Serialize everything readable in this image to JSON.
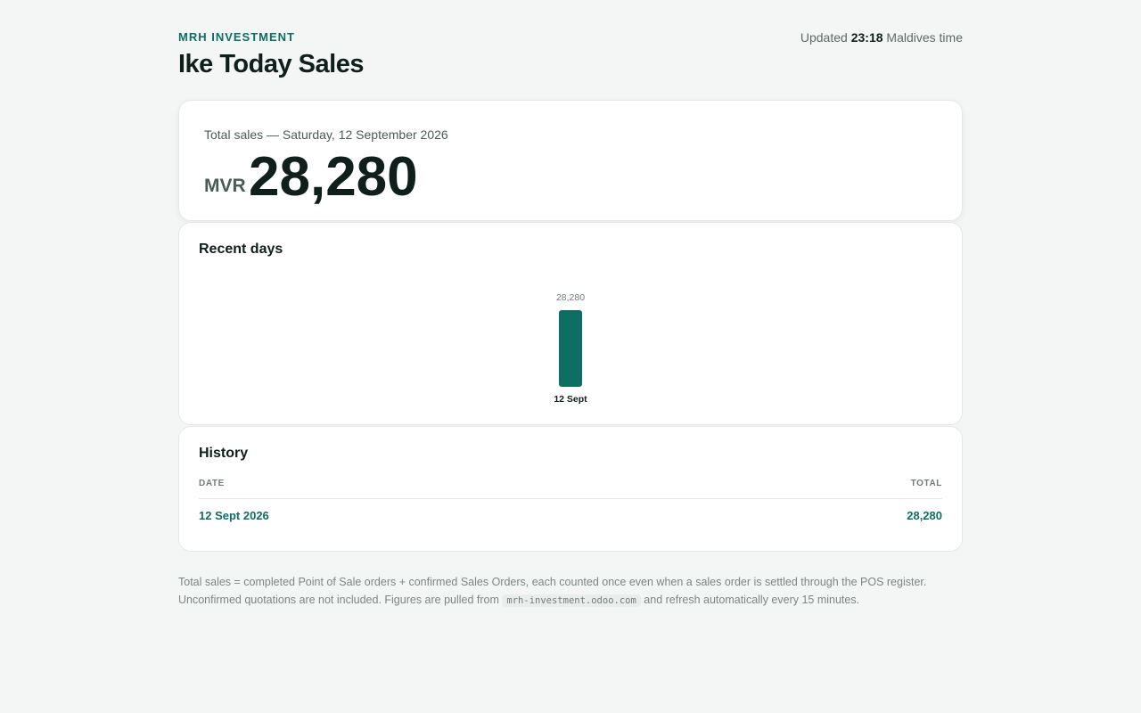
{
  "header": {
    "brand": "MRH INVESTMENT",
    "title": "Ike Today Sales",
    "updated_prefix": "Updated",
    "updated_time": "23:18",
    "updated_suffix": "Maldives time"
  },
  "total": {
    "caption": "Total sales — Saturday, 12 September 2026",
    "currency": "MVR",
    "amount": "28,280"
  },
  "recent": {
    "title": "Recent days"
  },
  "chart_data": {
    "type": "bar",
    "categories": [
      "12 Sept"
    ],
    "values": [
      28280
    ],
    "value_labels": [
      "28,280"
    ],
    "title": "",
    "xlabel": "",
    "ylabel": "",
    "ylim": [
      0,
      28280
    ],
    "grid": false,
    "color": "#0f6e64"
  },
  "history": {
    "title": "History",
    "columns": [
      "DATE",
      "TOTAL"
    ],
    "rows": [
      {
        "date": "12 Sept 2026",
        "total": "28,280"
      }
    ]
  },
  "footnote": {
    "part1": "Total sales = completed Point of Sale orders + confirmed Sales Orders, each counted once even when a sales order is settled through the POS register. Unconfirmed quotations are not included. Figures are pulled from",
    "code": "mrh-investment.odoo.com",
    "part2": "and refresh automatically every 15 minutes."
  },
  "colors": {
    "accent": "#0f6e64",
    "background": "#f4f6f5",
    "card": "#ffffff"
  }
}
